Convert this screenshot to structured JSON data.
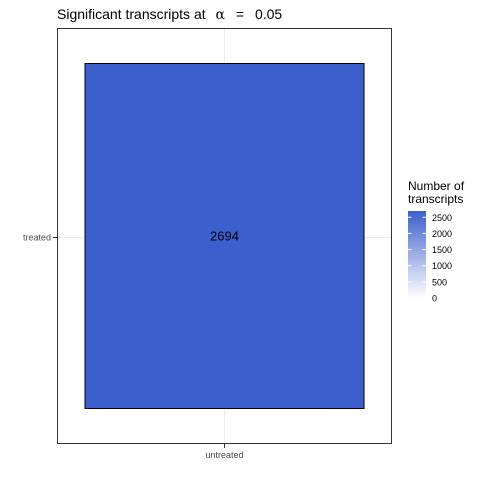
{
  "chart_data": {
    "type": "heatmap",
    "title": {
      "prefix": "Significant transcripts at",
      "symbol": "α",
      "equals": "=",
      "value": "0.05"
    },
    "x_categories": [
      "untreated"
    ],
    "y_categories": [
      "treated"
    ],
    "cells": [
      {
        "x": "untreated",
        "y": "treated",
        "value": 2694,
        "label": "2694"
      }
    ],
    "legend": {
      "title_lines": [
        "Number of",
        "transcripts"
      ],
      "ticks": [
        {
          "value": 0,
          "label": "0"
        },
        {
          "value": 500,
          "label": "500"
        },
        {
          "value": 1000,
          "label": "1000"
        },
        {
          "value": 1500,
          "label": "1500"
        },
        {
          "value": 2000,
          "label": "2000"
        },
        {
          "value": 2500,
          "label": "2500"
        }
      ],
      "range": [
        0,
        2694
      ],
      "position": "right"
    },
    "colors": {
      "low": "#ffffff",
      "high": "#3b5fcd",
      "panel_border": "#333333",
      "grid": "#ebebeb",
      "cell_border": "#000000"
    },
    "grid": true
  }
}
